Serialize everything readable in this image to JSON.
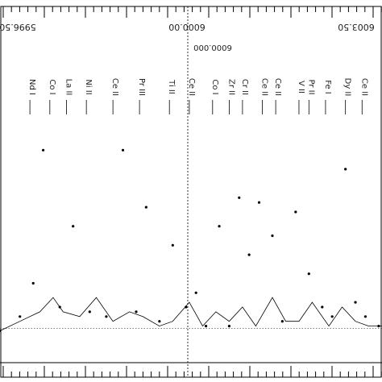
{
  "chart_data": {
    "type": "line",
    "title": "",
    "xlabel": "",
    "ylabel": "",
    "orientation": "rotated 180 degrees",
    "axis_tick_labels": [
      "5996.50",
      "6000.00",
      "6003.50"
    ],
    "center_marker_label": "6000.000",
    "line_ids": [
      {
        "label": "Nd I",
        "x": 5997.2
      },
      {
        "label": "Co I",
        "x": 5997.8
      },
      {
        "label": "La II",
        "x": 5998.3
      },
      {
        "label": "Ni II",
        "x": 5998.9
      },
      {
        "label": "Ce II",
        "x": 5999.7
      },
      {
        "label": "Pr III",
        "x": 6000.5
      },
      {
        "label": "Ti II",
        "x": 6001.4
      },
      {
        "label": "Ce II",
        "x": 6002.0
      },
      {
        "label": "Co I",
        "x": 6002.7
      },
      {
        "label": "Zr II",
        "x": 6003.2
      },
      {
        "label": "Cr II",
        "x": 6003.6
      },
      {
        "label": "Ce II",
        "x": 6004.2
      },
      {
        "label": "Ce II",
        "x": 6004.6
      },
      {
        "label": "V II",
        "x": 6005.3
      },
      {
        "label": "Pr II",
        "x": 6005.6
      },
      {
        "label": "Fe I",
        "x": 6006.1
      },
      {
        "label": "Dy II",
        "x": 6006.7
      },
      {
        "label": "Ce II",
        "x": 6007.2
      }
    ],
    "series": [
      {
        "style": "dots",
        "x": [
          5996.3,
          5996.9,
          5997.3,
          5997.6,
          5998.1,
          5998.5,
          5999.0,
          5999.5,
          6000.0,
          6000.4,
          6000.7,
          6001.1,
          6001.5,
          6001.9,
          6002.2,
          6002.5,
          6002.9,
          6003.2,
          6003.5,
          6003.8,
          6004.1,
          6004.5,
          6004.8,
          6005.2,
          6005.6,
          6006.0,
          6006.3,
          6006.7,
          6007.0,
          6007.3,
          6007.7
        ],
        "y": [
          1.0,
          0.97,
          0.9,
          0.62,
          0.95,
          0.78,
          0.96,
          0.97,
          0.62,
          0.96,
          0.74,
          0.98,
          0.82,
          0.95,
          0.92,
          0.99,
          0.78,
          0.99,
          0.72,
          0.84,
          0.73,
          0.8,
          0.98,
          0.75,
          0.88,
          0.95,
          0.97,
          0.66,
          0.94,
          0.97,
          0.99
        ]
      },
      {
        "style": "solid",
        "x": [
          5996.3,
          5996.9,
          5997.5,
          5997.9,
          5998.2,
          5998.7,
          5999.2,
          5999.7,
          6000.2,
          6000.6,
          6001.1,
          6001.5,
          6002.0,
          6002.4,
          6002.8,
          6003.2,
          6003.6,
          6004.0,
          6004.5,
          6004.9,
          6005.3,
          6005.7,
          6006.2,
          6006.6,
          6007.0,
          6007.4,
          6007.8
        ],
        "y": [
          1.0,
          0.98,
          0.96,
          0.93,
          0.96,
          0.97,
          0.93,
          0.98,
          0.96,
          0.97,
          0.99,
          0.98,
          0.94,
          0.99,
          0.96,
          0.98,
          0.95,
          0.99,
          0.93,
          0.98,
          0.98,
          0.94,
          0.99,
          0.95,
          0.98,
          0.99,
          0.99
        ]
      },
      {
        "style": "dotted",
        "x": [
          5996.3,
          6007.8
        ],
        "y": [
          0.995,
          0.995
        ]
      }
    ],
    "ylim": [
      0.55,
      1.05
    ],
    "xlim": [
      5996.3,
      6007.8
    ],
    "grid": false
  }
}
